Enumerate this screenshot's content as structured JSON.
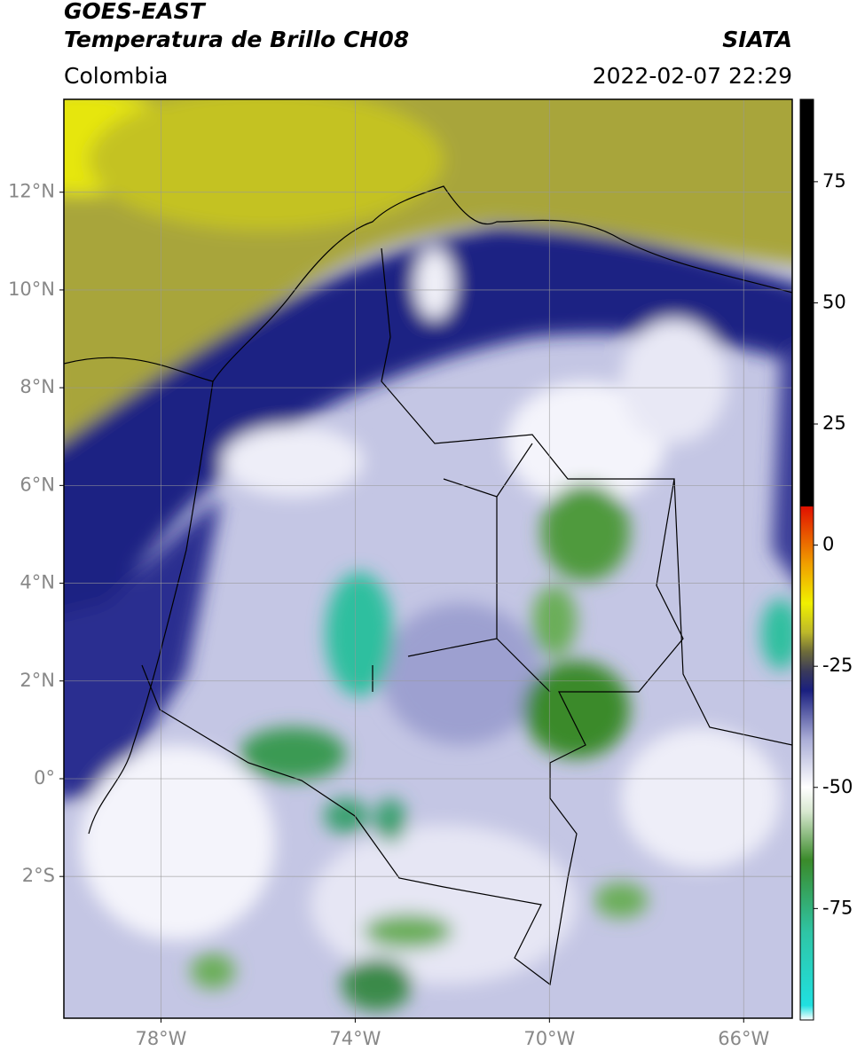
{
  "chart_data": {
    "type": "map",
    "title": "GOES-EAST",
    "subtitle": "Temperatura de Brillo CH08",
    "source": "SIATA",
    "region": "Colombia",
    "datetime": "2022-02-07 22:29",
    "xlim": [
      -80,
      -65
    ],
    "ylim": [
      -4.9,
      13.9
    ],
    "xticks": [
      {
        "value": -78,
        "label": "78°W"
      },
      {
        "value": -74,
        "label": "74°W"
      },
      {
        "value": -70,
        "label": "70°W"
      },
      {
        "value": -66,
        "label": "66°W"
      }
    ],
    "yticks": [
      {
        "value": -2,
        "label": "2°S"
      },
      {
        "value": 0,
        "label": "0°"
      },
      {
        "value": 2,
        "label": "2°N"
      },
      {
        "value": 4,
        "label": "4°N"
      },
      {
        "value": 6,
        "label": "6°N"
      },
      {
        "value": 8,
        "label": "8°N"
      },
      {
        "value": 10,
        "label": "10°N"
      },
      {
        "value": 12,
        "label": "12°N"
      }
    ],
    "grid": true,
    "colorbar": {
      "lim": [
        -98,
        92
      ],
      "ticks": [
        -75,
        -50,
        -25,
        0,
        25,
        50,
        75
      ],
      "stops": [
        [
          -98,
          "#ffffff"
        ],
        [
          -95,
          "#20e0e0"
        ],
        [
          -80,
          "#2fc5a5"
        ],
        [
          -65,
          "#3a8a2a"
        ],
        [
          -55,
          "#d8e8d0"
        ],
        [
          -50,
          "#ffffff"
        ],
        [
          -40,
          "#a9acd6"
        ],
        [
          -30,
          "#1a1f7f"
        ],
        [
          -26,
          "#3a3a5a"
        ],
        [
          -22,
          "#6e6c3a"
        ],
        [
          -18,
          "#bdb82a"
        ],
        [
          -12,
          "#f0f000"
        ],
        [
          -4,
          "#f0a000"
        ],
        [
          8,
          "#e01000"
        ],
        [
          8,
          "#000000"
        ],
        [
          92,
          "#000000"
        ]
      ]
    }
  }
}
